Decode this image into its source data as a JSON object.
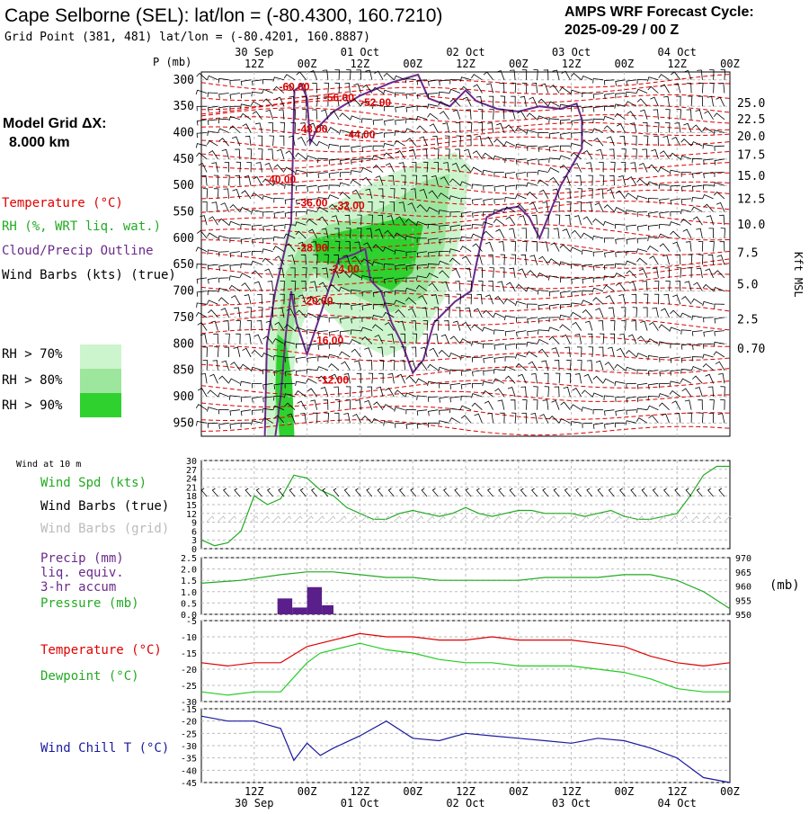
{
  "header": {
    "title": "Cape Selborne (SEL):  lat/lon = (-80.4300, 160.7210)",
    "grid_point": "Grid Point (381, 481) lat/lon = (-80.4201, 160.8887)",
    "cycle_label": "AMPS WRF Forecast Cycle:",
    "cycle_value": "2025-09-29 / 00  Z",
    "model_grid_label": "Model Grid ΔX:",
    "model_grid_value": "8.000 km"
  },
  "time_axis": {
    "hour_labels": [
      "12Z",
      "00Z",
      "12Z",
      "00Z",
      "12Z",
      "00Z",
      "12Z",
      "00Z",
      "12Z",
      "00Z"
    ],
    "date_labels": [
      "30 Sep",
      "01 Oct",
      "02 Oct",
      "03 Oct",
      "04 Oct"
    ],
    "hour_fraction": [
      0.04,
      0.5,
      1.0,
      1.5,
      2.0,
      2.5,
      3.0,
      3.5,
      4.0,
      4.5,
      5.0
    ],
    "days_span": 5
  },
  "colors": {
    "temperature": "#dd0000",
    "rh": "#22aa22",
    "cloud": "#6a2a8a",
    "wind": "#000000",
    "wind_grid": "#bbbbbb",
    "dewpoint": "#22cc22",
    "windchill": "#1a1aa0",
    "rh70": "#cdf5cd",
    "rh80": "#9de69d",
    "rh90": "#2fd12f",
    "precip": "#5a1f8a",
    "grid": "#bbbbbb"
  },
  "legend": {
    "temperature": "Temperature (°C)",
    "rh": "RH (%, WRT liq. wat.)",
    "cloud": "Cloud/Precip Outline",
    "wind": "Wind Barbs (kts) (true)",
    "rh70": "RH > 70%",
    "rh80": "RH > 80%",
    "rh90": "RH > 90%"
  },
  "chart_data": [
    {
      "type": "heatmap",
      "title": "Time-height cross section",
      "ylabel": "P (mb)",
      "y2label": "Kft MSL",
      "pressure_ticks": [
        300,
        350,
        400,
        450,
        500,
        550,
        600,
        650,
        700,
        750,
        800,
        850,
        900,
        950
      ],
      "pressure_range": [
        285,
        975
      ],
      "kft_ticks": [
        {
          "label": "25.0",
          "p": 345
        },
        {
          "label": "22.5",
          "p": 375
        },
        {
          "label": "20.0",
          "p": 408
        },
        {
          "label": "17.5",
          "p": 443
        },
        {
          "label": "15.0",
          "p": 483
        },
        {
          "label": "12.5",
          "p": 526
        },
        {
          "label": "10.0",
          "p": 575
        },
        {
          "label": "7.5",
          "p": 628
        },
        {
          "label": "5.0",
          "p": 688
        },
        {
          "label": "2.5",
          "p": 754
        },
        {
          "label": "0.70",
          "p": 810
        }
      ],
      "temperature_labels": [
        {
          "label": "-60.00",
          "x": 0.88,
          "p": 320
        },
        {
          "label": "-56.00",
          "x": 1.3,
          "p": 340
        },
        {
          "label": "-52.00",
          "x": 1.65,
          "p": 350
        },
        {
          "label": "-48.00",
          "x": 1.05,
          "p": 400
        },
        {
          "label": "-44.00",
          "x": 1.5,
          "p": 410
        },
        {
          "label": "-40.00",
          "x": 0.75,
          "p": 495
        },
        {
          "label": "-36.00",
          "x": 1.05,
          "p": 540
        },
        {
          "label": "-32.00",
          "x": 1.4,
          "p": 545
        },
        {
          "label": "-28.00",
          "x": 1.05,
          "p": 625
        },
        {
          "label": "-24.00",
          "x": 1.35,
          "p": 665
        },
        {
          "label": "-20.00",
          "x": 1.1,
          "p": 725
        },
        {
          "label": "-16.00",
          "x": 1.2,
          "p": 800
        },
        {
          "label": "-12.00",
          "x": 1.25,
          "p": 875
        }
      ]
    },
    {
      "type": "line",
      "title": "Wind at 10 m",
      "legend": [
        "Wind Spd (kts)",
        "Wind Barbs (true)",
        "Wind Barbs (grid)"
      ],
      "ylim": [
        0,
        30
      ],
      "yticks": [
        0,
        3,
        6,
        9,
        12,
        15,
        18,
        21,
        24,
        27,
        30
      ],
      "x": [
        0,
        0.125,
        0.25,
        0.375,
        0.5,
        0.625,
        0.75,
        0.875,
        1.0,
        1.125,
        1.25,
        1.375,
        1.5,
        1.625,
        1.75,
        1.875,
        2.0,
        2.125,
        2.25,
        2.375,
        2.5,
        2.625,
        2.75,
        2.875,
        3.0,
        3.125,
        3.25,
        3.375,
        3.5,
        3.625,
        3.75,
        3.875,
        4.0,
        4.125,
        4.25,
        4.375,
        4.5,
        4.625,
        4.75,
        4.875,
        5.0
      ],
      "series": [
        {
          "name": "Wind Spd (kts)",
          "values": [
            3,
            1,
            2,
            6,
            18,
            15,
            17,
            25,
            24,
            20,
            18,
            14,
            12,
            10,
            10,
            12,
            13,
            12,
            11,
            12,
            14,
            12,
            11,
            12,
            13,
            13,
            12,
            12,
            12,
            11,
            12,
            13,
            11,
            10,
            10,
            11,
            12,
            18,
            25,
            28,
            28
          ]
        }
      ]
    },
    {
      "type": "bar",
      "title": "Precip / Pressure",
      "legend": [
        "Precip (mm)",
        "liq. equiv.",
        "3-hr accum",
        "Pressure (mb)"
      ],
      "ylim": [
        0,
        2.5
      ],
      "yticks": [
        "0.0",
        "0.5",
        "1.0",
        "1.5",
        "2.0",
        "2.5"
      ],
      "y2lim": [
        950,
        970
      ],
      "y2ticks": [
        950,
        955,
        960,
        965,
        970
      ],
      "y2label": "(mb)",
      "precip": [
        {
          "x0": 0.72,
          "x1": 0.86,
          "value": 0.7
        },
        {
          "x0": 0.86,
          "x1": 1.0,
          "value": 0.3
        },
        {
          "x0": 1.0,
          "x1": 1.14,
          "value": 1.2
        },
        {
          "x0": 1.14,
          "x1": 1.25,
          "value": 0.4
        }
      ],
      "pressure_x": [
        0,
        0.375,
        0.75,
        1.0,
        1.25,
        1.5,
        1.75,
        2.0,
        2.25,
        2.5,
        2.75,
        3.0,
        3.25,
        3.5,
        3.75,
        4.0,
        4.25,
        4.5,
        4.75,
        5.0
      ],
      "pressure": [
        961,
        962,
        964,
        965,
        965,
        964,
        963,
        963,
        962,
        962,
        962,
        962,
        963,
        963,
        963,
        964,
        964,
        962,
        958,
        952
      ]
    },
    {
      "type": "line",
      "title": "Temperature / Dewpoint",
      "legend": [
        "Temperature (°C)",
        "Dewpoint (°C)"
      ],
      "ylim": [
        -30,
        -5
      ],
      "yticks": [
        -5,
        -10,
        -15,
        -20,
        -25,
        -30
      ],
      "x": [
        0,
        0.25,
        0.5,
        0.75,
        1.0,
        1.125,
        1.25,
        1.5,
        1.75,
        2.0,
        2.25,
        2.5,
        2.75,
        3.0,
        3.25,
        3.5,
        3.75,
        4.0,
        4.25,
        4.5,
        4.75,
        5.0
      ],
      "series": [
        {
          "name": "Temperature (°C)",
          "values": [
            -18,
            -19,
            -18,
            -18,
            -13,
            -12,
            -11,
            -9,
            -10,
            -10,
            -11,
            -11,
            -10,
            -11,
            -11,
            -11,
            -12,
            -13,
            -16,
            -18,
            -19,
            -18
          ]
        },
        {
          "name": "Dewpoint (°C)",
          "values": [
            -27,
            -28,
            -27,
            -27,
            -18,
            -15,
            -14,
            -12,
            -14,
            -15,
            -17,
            -18,
            -18,
            -19,
            -19,
            -19,
            -20,
            -21,
            -23,
            -26,
            -27,
            -27
          ]
        }
      ]
    },
    {
      "type": "line",
      "title": "Wind Chill",
      "legend": [
        "Wind Chill T (°C)"
      ],
      "ylim": [
        -45,
        -15
      ],
      "yticks": [
        -15,
        -20,
        -25,
        -30,
        -35,
        -40,
        -45
      ],
      "x": [
        0,
        0.25,
        0.5,
        0.75,
        0.875,
        1.0,
        1.125,
        1.25,
        1.5,
        1.75,
        2.0,
        2.25,
        2.5,
        2.75,
        3.0,
        3.25,
        3.5,
        3.75,
        4.0,
        4.25,
        4.5,
        4.75,
        5.0
      ],
      "series": [
        {
          "name": "Wind Chill T (°C)",
          "values": [
            -18,
            -20,
            -20,
            -23,
            -36,
            -29,
            -34,
            -31,
            -26,
            -20,
            -27,
            -28,
            -25,
            -26,
            -27,
            -28,
            -29,
            -27,
            -28,
            -31,
            -35,
            -43,
            -45
          ]
        }
      ]
    }
  ],
  "panel_labels": {
    "wind": [
      "Wind Spd (kts)",
      "Wind Barbs (true)",
      "Wind Barbs (grid)"
    ],
    "wind_title": "Wind at 10 m",
    "precip": [
      "Precip (mm)",
      "liq. equiv.",
      "3-hr accum",
      "Pressure (mb)"
    ],
    "temp": [
      "Temperature (°C)",
      "Dewpoint (°C)"
    ],
    "chill": "Wind Chill T (°C)"
  }
}
